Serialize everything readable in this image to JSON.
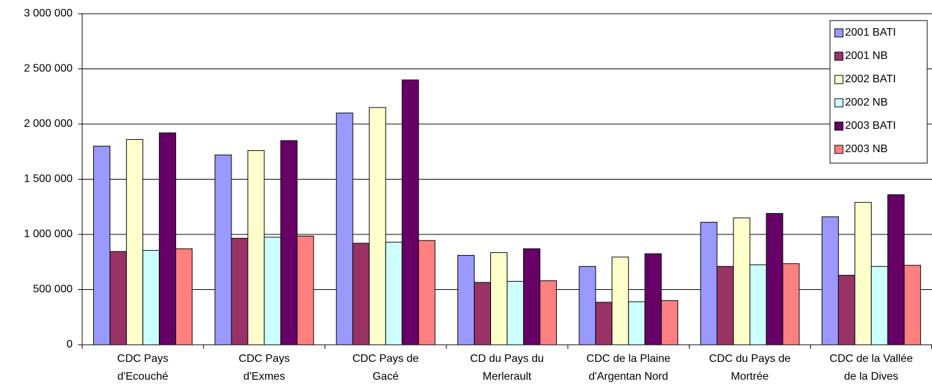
{
  "chart_data": {
    "type": "bar",
    "categories": [
      "CDC Pays\nd'Ecouché",
      "CDC Pays\nd'Exmes",
      "CDC Pays de\nGacé",
      "CD du Pays du\nMerlerault",
      "CDC de la Plaine\nd'Argentan Nord",
      "CDC du Pays de\nMortrée",
      "CDC de la Vallée\nde la Dives"
    ],
    "series": [
      {
        "name": "2001 BATI",
        "color": "#9999FF",
        "values": [
          1800000,
          1720000,
          2100000,
          810000,
          710000,
          1110000,
          1160000
        ]
      },
      {
        "name": "2001 NB",
        "color": "#993366",
        "values": [
          845000,
          965000,
          920000,
          565000,
          385000,
          710000,
          630000
        ]
      },
      {
        "name": "2002 BATI",
        "color": "#FFFFCC",
        "values": [
          1860000,
          1760000,
          2150000,
          835000,
          795000,
          1150000,
          1290000
        ]
      },
      {
        "name": "2002 NB",
        "color": "#CCFFFF",
        "values": [
          855000,
          975000,
          930000,
          575000,
          390000,
          725000,
          710000
        ]
      },
      {
        "name": "2003 BATI",
        "color": "#660066",
        "values": [
          1920000,
          1850000,
          2400000,
          870000,
          825000,
          1190000,
          1360000
        ]
      },
      {
        "name": "2003 NB",
        "color": "#FF8080",
        "values": [
          870000,
          985000,
          945000,
          580000,
          400000,
          735000,
          720000
        ]
      }
    ],
    "ylim": [
      0,
      3000000
    ],
    "yticks": [
      0,
      {
        "value": 500000,
        "label": "500 000"
      },
      {
        "value": 1000000,
        "label": "1 000 000"
      },
      {
        "value": 1500000,
        "label": "1 500 000"
      },
      {
        "value": 2000000,
        "label": "2 000 000"
      },
      {
        "value": 2500000,
        "label": "2 500 000"
      },
      {
        "value": 3000000,
        "label": "3 000 000"
      }
    ],
    "grid": true,
    "legend": "top-right"
  }
}
